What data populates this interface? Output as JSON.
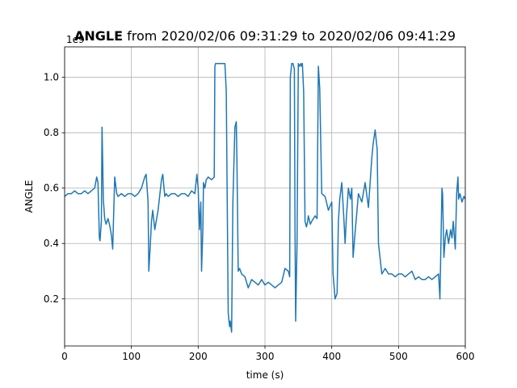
{
  "chart_data": {
    "type": "line",
    "title_bold": "ANGLE",
    "title_rest": " from 2020/02/06 09:31:29 to 2020/02/06 09:41:29",
    "xlabel": "time (s)",
    "ylabel": "ANGLE",
    "y_offset_label": "1e9",
    "xlim": [
      0,
      600
    ],
    "ylim": [
      0.03,
      1.11
    ],
    "x_ticks": [
      0,
      100,
      200,
      300,
      400,
      500,
      600
    ],
    "x_tick_labels": [
      "0",
      "100",
      "200",
      "300",
      "400",
      "500",
      "600"
    ],
    "y_ticks": [
      0.2,
      0.4,
      0.6,
      0.8,
      1.0
    ],
    "y_tick_labels": [
      "0.2",
      "0.4",
      "0.6",
      "0.8",
      "1.0"
    ],
    "grid": true,
    "line_color": "#1f77b4",
    "series": [
      {
        "x": [
          0,
          5,
          10,
          15,
          20,
          25,
          30,
          35,
          40,
          45,
          48,
          50,
          52,
          53,
          55,
          56,
          57,
          58,
          60,
          62,
          65,
          68,
          70,
          72,
          75,
          78,
          80,
          85,
          90,
          95,
          100,
          105,
          110,
          115,
          120,
          122,
          125,
          126,
          128,
          130,
          132,
          135,
          140,
          145,
          147,
          150,
          152,
          155,
          160,
          165,
          170,
          175,
          180,
          185,
          190,
          195,
          198,
          200,
          202,
          204,
          205,
          207,
          208,
          210,
          212,
          215,
          220,
          224,
          225,
          226,
          228,
          230,
          235,
          240,
          242,
          245,
          247,
          248,
          250,
          252,
          255,
          257,
          258,
          260,
          262,
          265,
          270,
          275,
          280,
          285,
          290,
          295,
          300,
          305,
          310,
          315,
          320,
          325,
          330,
          335,
          337,
          338,
          340,
          342,
          344,
          345,
          346,
          348,
          350,
          352,
          354,
          355,
          356,
          358,
          360,
          362,
          364,
          365,
          368,
          370,
          375,
          378,
          380,
          382,
          385,
          390,
          395,
          400,
          402,
          405,
          408,
          410,
          412,
          415,
          418,
          420,
          422,
          425,
          428,
          430,
          432,
          435,
          440,
          445,
          450,
          455,
          460,
          462,
          465,
          468,
          470,
          475,
          480,
          485,
          490,
          495,
          500,
          505,
          510,
          515,
          520,
          525,
          530,
          535,
          540,
          545,
          550,
          555,
          560,
          562,
          565,
          566,
          568,
          570,
          572,
          575,
          578,
          580,
          582,
          585,
          587,
          589,
          590,
          592,
          595,
          598,
          600
        ],
        "y": [
          0.57,
          0.58,
          0.58,
          0.59,
          0.58,
          0.58,
          0.59,
          0.58,
          0.59,
          0.6,
          0.64,
          0.62,
          0.42,
          0.41,
          0.48,
          0.82,
          0.7,
          0.56,
          0.49,
          0.47,
          0.49,
          0.46,
          0.43,
          0.38,
          0.64,
          0.58,
          0.57,
          0.58,
          0.57,
          0.58,
          0.58,
          0.57,
          0.58,
          0.6,
          0.64,
          0.65,
          0.55,
          0.3,
          0.38,
          0.48,
          0.52,
          0.45,
          0.52,
          0.63,
          0.65,
          0.57,
          0.58,
          0.57,
          0.58,
          0.58,
          0.57,
          0.58,
          0.58,
          0.57,
          0.59,
          0.58,
          0.65,
          0.6,
          0.45,
          0.55,
          0.3,
          0.45,
          0.62,
          0.6,
          0.63,
          0.64,
          0.63,
          0.64,
          1.04,
          1.05,
          1.05,
          1.05,
          1.05,
          1.05,
          0.95,
          0.15,
          0.1,
          0.12,
          0.08,
          0.55,
          0.82,
          0.84,
          0.7,
          0.3,
          0.31,
          0.29,
          0.28,
          0.24,
          0.27,
          0.26,
          0.25,
          0.27,
          0.25,
          0.26,
          0.25,
          0.24,
          0.25,
          0.26,
          0.31,
          0.3,
          0.28,
          1.0,
          1.05,
          1.05,
          1.03,
          0.45,
          0.12,
          0.4,
          1.05,
          1.04,
          1.05,
          1.04,
          1.05,
          0.95,
          0.48,
          0.46,
          0.48,
          0.5,
          0.47,
          0.48,
          0.5,
          0.49,
          1.04,
          0.96,
          0.58,
          0.57,
          0.52,
          0.55,
          0.29,
          0.2,
          0.22,
          0.48,
          0.56,
          0.62,
          0.5,
          0.4,
          0.5,
          0.6,
          0.56,
          0.6,
          0.35,
          0.44,
          0.58,
          0.55,
          0.62,
          0.53,
          0.71,
          0.76,
          0.81,
          0.74,
          0.4,
          0.29,
          0.31,
          0.29,
          0.29,
          0.28,
          0.29,
          0.29,
          0.28,
          0.29,
          0.3,
          0.27,
          0.28,
          0.27,
          0.27,
          0.28,
          0.27,
          0.28,
          0.29,
          0.2,
          0.6,
          0.58,
          0.35,
          0.42,
          0.45,
          0.4,
          0.45,
          0.42,
          0.48,
          0.38,
          0.58,
          0.64,
          0.56,
          0.58,
          0.55,
          0.57,
          0.56
        ]
      }
    ]
  }
}
